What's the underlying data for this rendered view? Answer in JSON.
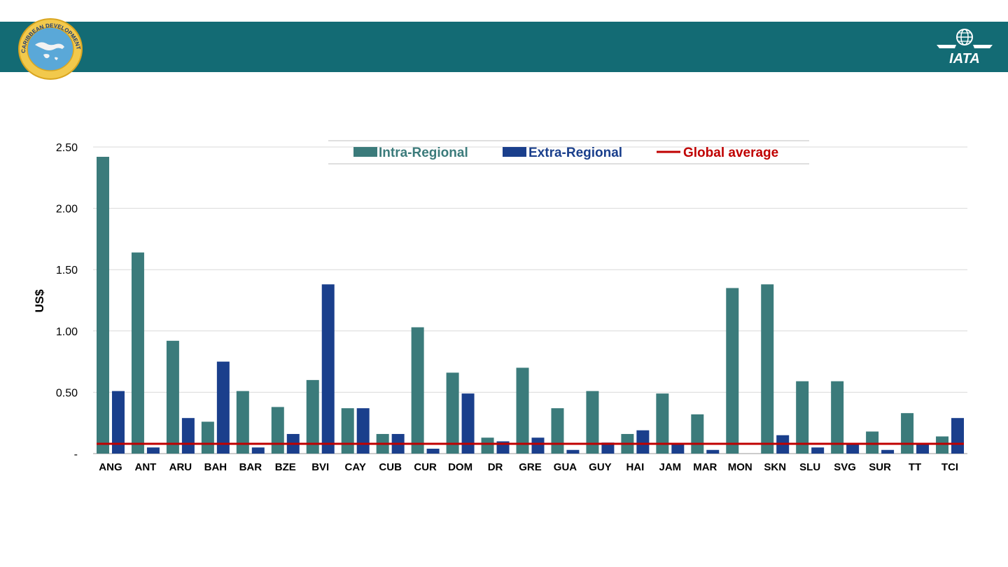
{
  "header": {
    "left_logo": {
      "text": "CARIBBEAN DEVELOPMENT BANK",
      "icon": "cdb-logo-icon"
    },
    "right_logo": {
      "text": "IATA",
      "icon": "iata-globe-icon"
    },
    "colors": {
      "banner": "#136b74"
    }
  },
  "chart_data": {
    "type": "bar",
    "ylabel": "US$",
    "xlabel": "",
    "ylim": [
      0,
      2.5
    ],
    "yticks": [
      {
        "value": 0,
        "label": "-"
      },
      {
        "value": 0.5,
        "label": "0.50"
      },
      {
        "value": 1.0,
        "label": "1.00"
      },
      {
        "value": 1.5,
        "label": "1.50"
      },
      {
        "value": 2.0,
        "label": "2.00"
      },
      {
        "value": 2.5,
        "label": "2.50"
      }
    ],
    "grid": true,
    "legend_position": "top-center",
    "categories": [
      "ANG",
      "ANT",
      "ARU",
      "BAH",
      "BAR",
      "BZE",
      "BVI",
      "CAY",
      "CUB",
      "CUR",
      "DOM",
      "DR",
      "GRE",
      "GUA",
      "GUY",
      "HAI",
      "JAM",
      "MAR",
      "MON",
      "SKN",
      "SLU",
      "SVG",
      "SUR",
      "TT",
      "TCI"
    ],
    "series": [
      {
        "name": "Intra-Regional",
        "color": "#3b7b7b",
        "values": [
          2.42,
          1.64,
          0.92,
          0.26,
          0.51,
          0.38,
          0.6,
          0.37,
          0.16,
          1.03,
          0.66,
          0.13,
          0.7,
          0.37,
          0.51,
          0.16,
          0.49,
          0.32,
          1.35,
          1.38,
          0.59,
          0.59,
          0.18,
          0.33,
          0.14
        ]
      },
      {
        "name": "Extra-Regional",
        "color": "#1a3f8c",
        "values": [
          0.51,
          0.05,
          0.29,
          0.75,
          0.05,
          0.16,
          1.38,
          0.37,
          0.16,
          0.04,
          0.49,
          0.1,
          0.13,
          0.03,
          0.09,
          0.19,
          0.08,
          0.03,
          0.0,
          0.15,
          0.05,
          0.08,
          0.03,
          0.08,
          0.29
        ]
      }
    ],
    "reference_line": {
      "name": "Global average",
      "value": 0.08,
      "color": "#c00000"
    }
  }
}
